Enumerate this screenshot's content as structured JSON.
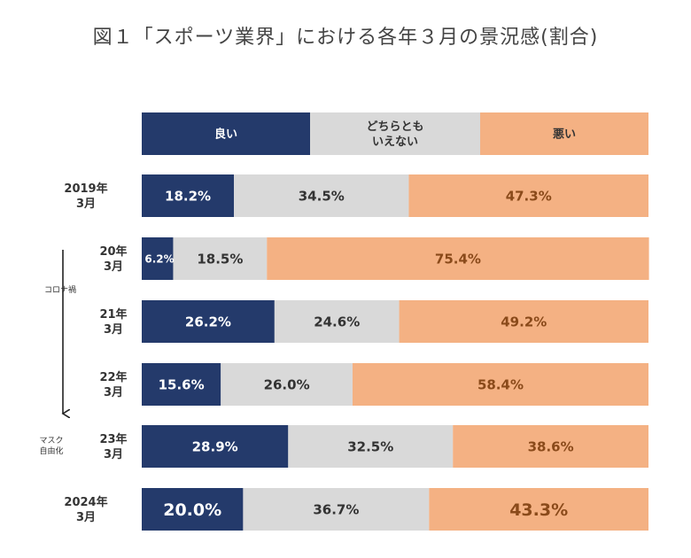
{
  "title": "図１「スポーツ業界」における各年３月の景況感(割合)",
  "chart_data": {
    "type": "bar",
    "orientation": "horizontal",
    "stacked": "percent",
    "title": "図１「スポーツ業界」における各年３月の景況感(割合)",
    "legend": {
      "placement": "top",
      "entries": [
        {
          "label": "良い",
          "color": "#243a6b"
        },
        {
          "label": "どちらとも\nいえない",
          "color": "#d9d9d9"
        },
        {
          "label": "悪い",
          "color": "#f4b183"
        }
      ]
    },
    "categories": [
      "2019年\n3月",
      "20年\n3月",
      "21年\n3月",
      "22年\n3月",
      "23年\n3月",
      "2024年\n3月"
    ],
    "series": [
      {
        "name": "良い",
        "color": "#243a6b",
        "values": [
          18.2,
          6.2,
          26.2,
          15.6,
          28.9,
          20.0
        ]
      },
      {
        "name": "どちらとも\nいえない",
        "color": "#d9d9d9",
        "values": [
          34.5,
          18.5,
          24.6,
          26.0,
          32.5,
          36.7
        ]
      },
      {
        "name": "悪い",
        "color": "#f4b183",
        "values": [
          47.3,
          75.4,
          49.2,
          58.4,
          38.6,
          43.3
        ]
      }
    ],
    "value_labels": [
      [
        "18.2%",
        "34.5%",
        "47.3%"
      ],
      [
        "6.2%",
        "18.5%",
        "75.4%"
      ],
      [
        "26.2%",
        "24.6%",
        "49.2%"
      ],
      [
        "15.6%",
        "26.0%",
        "58.4%"
      ],
      [
        "28.9%",
        "32.5%",
        "38.6%"
      ],
      [
        "20.0%",
        "36.7%",
        "43.3%"
      ]
    ],
    "annotations": {
      "covid": "コロナ禍",
      "mask": "マスク\n自由化"
    },
    "xlim": [
      0,
      100
    ],
    "grid": false
  }
}
